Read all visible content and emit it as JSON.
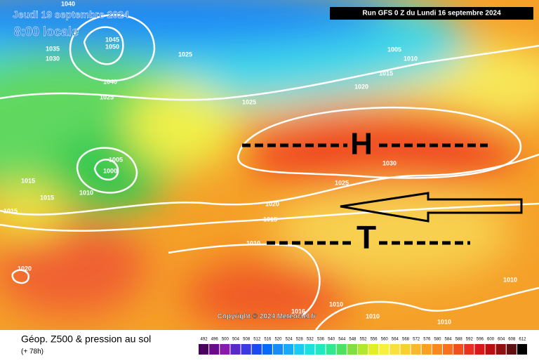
{
  "header": {
    "valid_date": "Jeudi 19 septembre 2024",
    "local_time": "8:00 locale",
    "run": "Run GFS 0 Z du Lundi 16 septembre 2024",
    "copyright": "Copyright © 2024 Meteociel.fr"
  },
  "footer": {
    "title": "Géop. Z500 & pression au sol",
    "lead_time": "(+ 78h)"
  },
  "systems": {
    "high": "H",
    "low": "T"
  },
  "isobar_labels": [
    "1040",
    "1035",
    "1030",
    "1045",
    "1050",
    "1025",
    "1040",
    "1025",
    "1025",
    "1005",
    "1010",
    "1015",
    "1020",
    "1005",
    "1000",
    "1015",
    "1010",
    "1015",
    "1015",
    "1030",
    "1025",
    "1020",
    "1015",
    "1010",
    "1020",
    "1010",
    "1010",
    "1016",
    "1010",
    "1010"
  ],
  "colorbar": {
    "labels": [
      492,
      496,
      500,
      504,
      508,
      512,
      516,
      520,
      524,
      528,
      532,
      536,
      540,
      544,
      548,
      552,
      556,
      560,
      564,
      568,
      572,
      576,
      580,
      584,
      588,
      592,
      596,
      600,
      604,
      608,
      612
    ],
    "colors": [
      "#4b0060",
      "#6a0a8a",
      "#8a1aaa",
      "#5a2ac8",
      "#3a3ae0",
      "#1a4af0",
      "#0a6af5",
      "#1a8af5",
      "#1aaaf5",
      "#1acaf0",
      "#1ae0e0",
      "#20e8c0",
      "#30e890",
      "#50e060",
      "#80e040",
      "#b0e830",
      "#e0f020",
      "#f8f040",
      "#f8e040",
      "#f8d030",
      "#f8b830",
      "#f8a020",
      "#f88820",
      "#f87020",
      "#f05020",
      "#e83020",
      "#d81818",
      "#b81010",
      "#901010",
      "#601010",
      "#000000"
    ]
  }
}
